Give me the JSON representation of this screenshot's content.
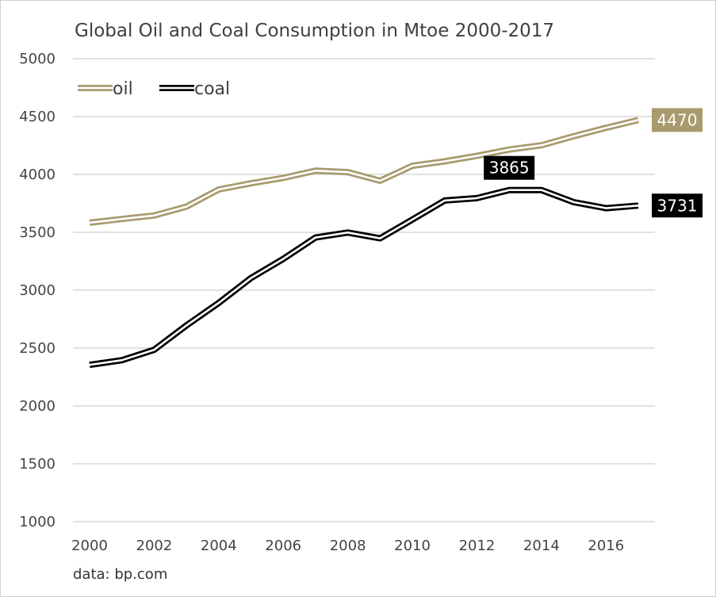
{
  "chart_data": {
    "type": "line",
    "title": "Global Oil and Coal Consumption in Mtoe 2000-2017",
    "source": "data: bp.com",
    "xlabel": "",
    "ylabel": "",
    "x": [
      2000,
      2001,
      2002,
      2003,
      2004,
      2005,
      2006,
      2007,
      2008,
      2009,
      2010,
      2011,
      2012,
      2013,
      2014,
      2015,
      2016,
      2017
    ],
    "x_ticks": [
      "2000",
      "2002",
      "2004",
      "2006",
      "2008",
      "2010",
      "2012",
      "2014",
      "2016"
    ],
    "y_ticks": [
      "1000",
      "1500",
      "2000",
      "2500",
      "3000",
      "3500",
      "4000",
      "4500",
      "5000"
    ],
    "ylim": [
      1000,
      5000
    ],
    "grid": true,
    "legend_position": "top-left",
    "series": [
      {
        "name": "oil",
        "color": "#a89a6d",
        "values": [
          3583,
          3615,
          3645,
          3722,
          3870,
          3923,
          3970,
          4032,
          4020,
          3945,
          4075,
          4113,
          4160,
          4215,
          4252,
          4330,
          4403,
          4470
        ]
      },
      {
        "name": "coal",
        "color": "#000000",
        "values": [
          2355,
          2395,
          2485,
          2695,
          2890,
          3105,
          3270,
          3455,
          3498,
          3448,
          3610,
          3775,
          3795,
          3865,
          3865,
          3760,
          3708,
          3731
        ]
      }
    ],
    "annotations": [
      {
        "series": "coal",
        "x": 2013,
        "text": "3865",
        "bg": "#000000"
      },
      {
        "series": "oil",
        "x": 2017,
        "text": "4470",
        "bg": "#a89a6d"
      },
      {
        "series": "coal",
        "x": 2017,
        "text": "3731",
        "bg": "#000000"
      }
    ]
  }
}
